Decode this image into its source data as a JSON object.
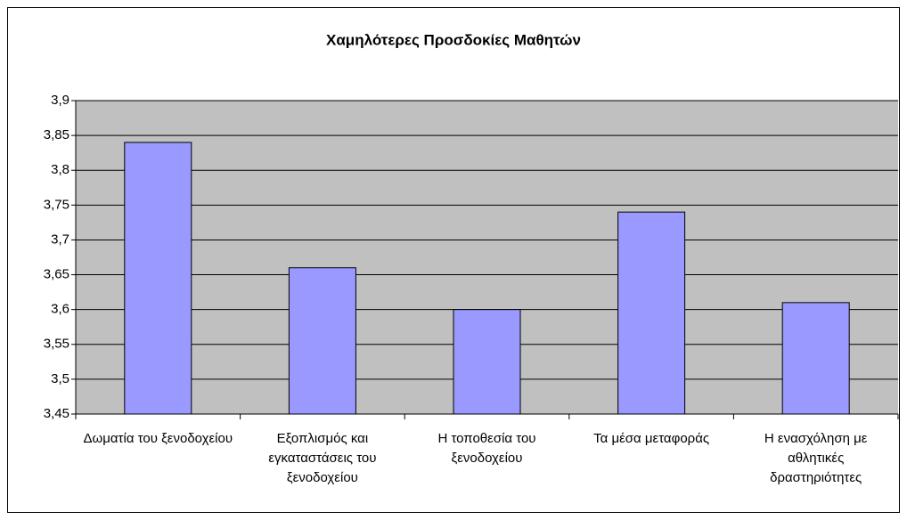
{
  "chart_data": {
    "type": "bar",
    "title": "Χαμηλότερες Προσδοκίες Μαθητών",
    "categories": [
      "Δωματία του ξενοδοχείου",
      "Εξοπλισμός και εγκαταστάσεις του ξενοδοχείου",
      "Η τοποθεσία του ξενοδοχείου",
      "Τα μέσα μεταφοράς",
      "Η ενασχόληση με αθλητικές δραστηριότητες"
    ],
    "values": [
      3.84,
      3.66,
      3.6,
      3.74,
      3.61
    ],
    "color": "#9999ff",
    "ylim": [
      3.45,
      3.9
    ],
    "yticks": [
      {
        "value": 3.45,
        "label": "3,45"
      },
      {
        "value": 3.5,
        "label": "3,5"
      },
      {
        "value": 3.55,
        "label": "3,55"
      },
      {
        "value": 3.6,
        "label": "3,6"
      },
      {
        "value": 3.65,
        "label": "3,65"
      },
      {
        "value": 3.7,
        "label": "3,7"
      },
      {
        "value": 3.75,
        "label": "3,75"
      },
      {
        "value": 3.8,
        "label": "3,8"
      },
      {
        "value": 3.85,
        "label": "3,85"
      },
      {
        "value": 3.9,
        "label": "3,9"
      }
    ],
    "grid": true
  }
}
